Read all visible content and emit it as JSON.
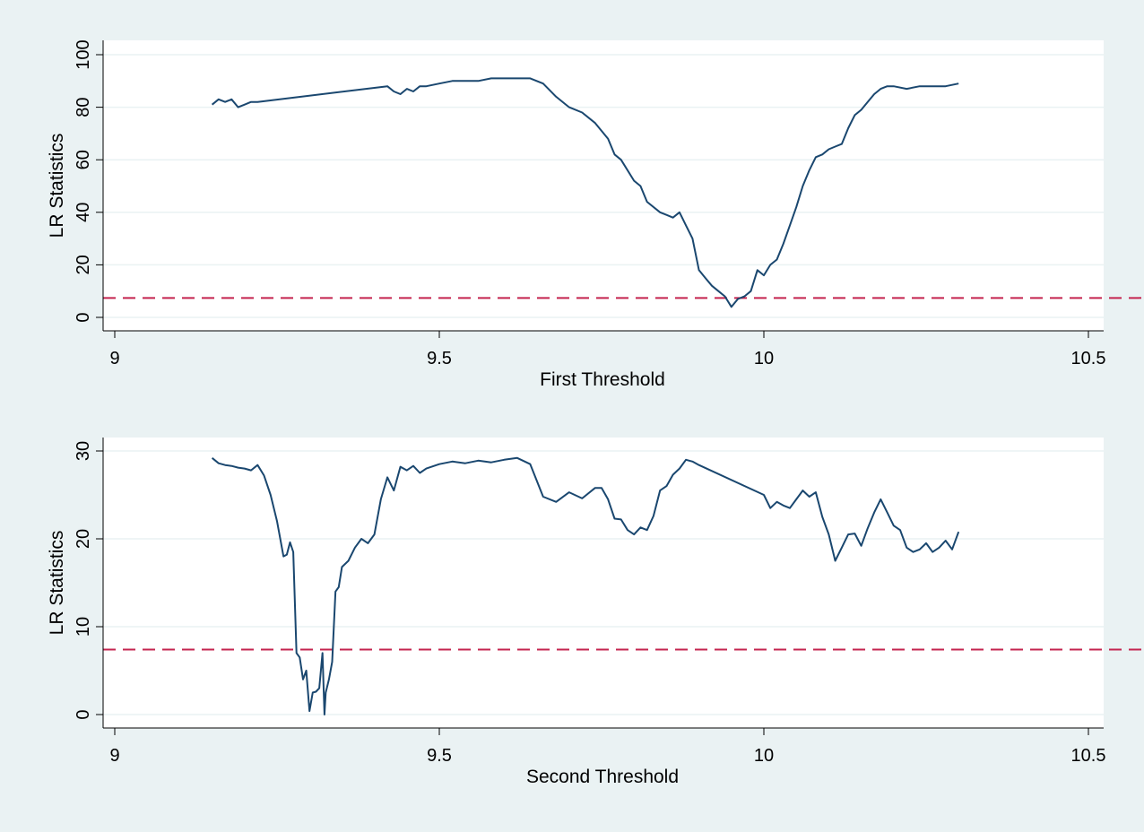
{
  "chart_data": [
    {
      "type": "line",
      "xlabel": "First Threshold",
      "ylabel": "LR Statistics",
      "xlim": [
        9,
        10.5
      ],
      "ylim": [
        0,
        100
      ],
      "xticks": [
        9,
        9.5,
        10,
        10.5
      ],
      "xtick_labels": [
        "9",
        "9.5",
        "10",
        "10.5"
      ],
      "yticks": [
        0,
        20,
        40,
        60,
        80,
        100
      ],
      "ytick_labels": [
        "0",
        "20",
        "40",
        "60",
        "80",
        "100"
      ],
      "reference_line": 7.4,
      "grid": true,
      "colors": {
        "line": "#1a476f",
        "reference": "#c4244f",
        "background": "#eaf2f3",
        "plot": "#ffffff"
      },
      "series": [
        {
          "x": [
            9.15,
            9.16,
            9.17,
            9.18,
            9.19,
            9.2,
            9.21,
            9.22,
            9.42,
            9.43,
            9.44,
            9.45,
            9.46,
            9.47,
            9.48,
            9.5,
            9.52,
            9.54,
            9.56,
            9.58,
            9.6,
            9.62,
            9.64,
            9.66,
            9.68,
            9.7,
            9.72,
            9.74,
            9.76,
            9.77,
            9.78,
            9.8,
            9.81,
            9.82,
            9.84,
            9.85,
            9.86,
            9.87,
            9.88,
            9.89,
            9.9,
            9.91,
            9.92,
            9.93,
            9.94,
            9.95,
            9.96,
            9.97,
            9.98,
            9.99,
            10,
            10.01,
            10.02,
            10.03,
            10.04,
            10.05,
            10.06,
            10.07,
            10.08,
            10.09,
            10.1,
            10.11,
            10.12,
            10.13,
            10.14,
            10.15,
            10.16,
            10.17,
            10.18,
            10.19,
            10.2,
            10.22,
            10.24,
            10.26,
            10.28,
            10.3
          ],
          "y": [
            81,
            83,
            82,
            83,
            80,
            81,
            82,
            82,
            88,
            86,
            85,
            87,
            86,
            88,
            88,
            89,
            90,
            90,
            90,
            91,
            91,
            91,
            91,
            89,
            84,
            80,
            78,
            74,
            68,
            62,
            60,
            52,
            50,
            44,
            40,
            39,
            38,
            40,
            35,
            30,
            18,
            15,
            12,
            10,
            8,
            4,
            7,
            8,
            10,
            18,
            16,
            20,
            22,
            28,
            35,
            42,
            50,
            56,
            61,
            62,
            64,
            65,
            66,
            72,
            77,
            79,
            82,
            85,
            87,
            88,
            88,
            87,
            88,
            88,
            88,
            89
          ]
        }
      ]
    },
    {
      "type": "line",
      "xlabel": "Second Threshold",
      "ylabel": "LR Statistics",
      "xlim": [
        9,
        10.5
      ],
      "ylim": [
        0,
        30
      ],
      "xticks": [
        9,
        9.5,
        10,
        10.5
      ],
      "xtick_labels": [
        "9",
        "9.5",
        "10",
        "10.5"
      ],
      "yticks": [
        0,
        10,
        20,
        30
      ],
      "ytick_labels": [
        "0",
        "10",
        "20",
        "30"
      ],
      "reference_line": 7.4,
      "grid": true,
      "colors": {
        "line": "#1a476f",
        "reference": "#c4244f",
        "background": "#eaf2f3",
        "plot": "#ffffff"
      },
      "series": [
        {
          "x": [
            9.15,
            9.16,
            9.17,
            9.18,
            9.19,
            9.2,
            9.21,
            9.22,
            9.23,
            9.24,
            9.25,
            9.26,
            9.265,
            9.27,
            9.275,
            9.28,
            9.285,
            9.29,
            9.295,
            9.3,
            9.305,
            9.31,
            9.315,
            9.32,
            9.323,
            9.325,
            9.33,
            9.335,
            9.34,
            9.345,
            9.35,
            9.36,
            9.37,
            9.38,
            9.39,
            9.4,
            9.41,
            9.42,
            9.43,
            9.44,
            9.45,
            9.46,
            9.47,
            9.48,
            9.5,
            9.52,
            9.54,
            9.56,
            9.58,
            9.6,
            9.62,
            9.64,
            9.66,
            9.68,
            9.7,
            9.72,
            9.74,
            9.75,
            9.76,
            9.77,
            9.78,
            9.79,
            9.8,
            9.81,
            9.82,
            9.83,
            9.84,
            9.85,
            9.86,
            9.87,
            9.88,
            9.89,
            9.9,
            10,
            10.01,
            10.02,
            10.03,
            10.04,
            10.05,
            10.06,
            10.07,
            10.08,
            10.09,
            10.1,
            10.11,
            10.12,
            10.13,
            10.14,
            10.15,
            10.16,
            10.17,
            10.18,
            10.19,
            10.2,
            10.21,
            10.22,
            10.23,
            10.24,
            10.25,
            10.26,
            10.27,
            10.28,
            10.29,
            10.3
          ],
          "y": [
            29.2,
            28.6,
            28.4,
            28.3,
            28.1,
            28.0,
            27.8,
            28.4,
            27.2,
            25.0,
            22.0,
            18.0,
            18.2,
            19.6,
            18.5,
            7.0,
            6.5,
            4.0,
            5.0,
            0.4,
            2.5,
            2.6,
            3.0,
            7.0,
            0.0,
            2.5,
            4.0,
            6.0,
            14.0,
            14.5,
            16.8,
            17.5,
            19.0,
            20.0,
            19.5,
            20.5,
            24.5,
            27.0,
            25.5,
            28.2,
            27.8,
            28.3,
            27.5,
            28.0,
            28.5,
            28.8,
            28.6,
            28.9,
            28.7,
            29.0,
            29.2,
            28.5,
            24.8,
            24.2,
            25.3,
            24.6,
            25.8,
            25.8,
            24.5,
            22.3,
            22.2,
            21.0,
            20.5,
            21.3,
            21.0,
            22.6,
            25.5,
            26.0,
            27.3,
            28.0,
            29.0,
            28.8,
            28.4,
            25.0,
            23.5,
            24.2,
            23.8,
            23.5,
            24.5,
            25.5,
            24.8,
            25.3,
            22.5,
            20.5,
            17.5,
            19.0,
            20.5,
            20.6,
            19.2,
            21.2,
            23.0,
            24.5,
            23.0,
            21.5,
            21.0,
            19.0,
            18.5,
            18.8,
            19.5,
            18.5,
            19.0,
            19.8,
            18.8,
            20.8
          ]
        }
      ]
    }
  ]
}
